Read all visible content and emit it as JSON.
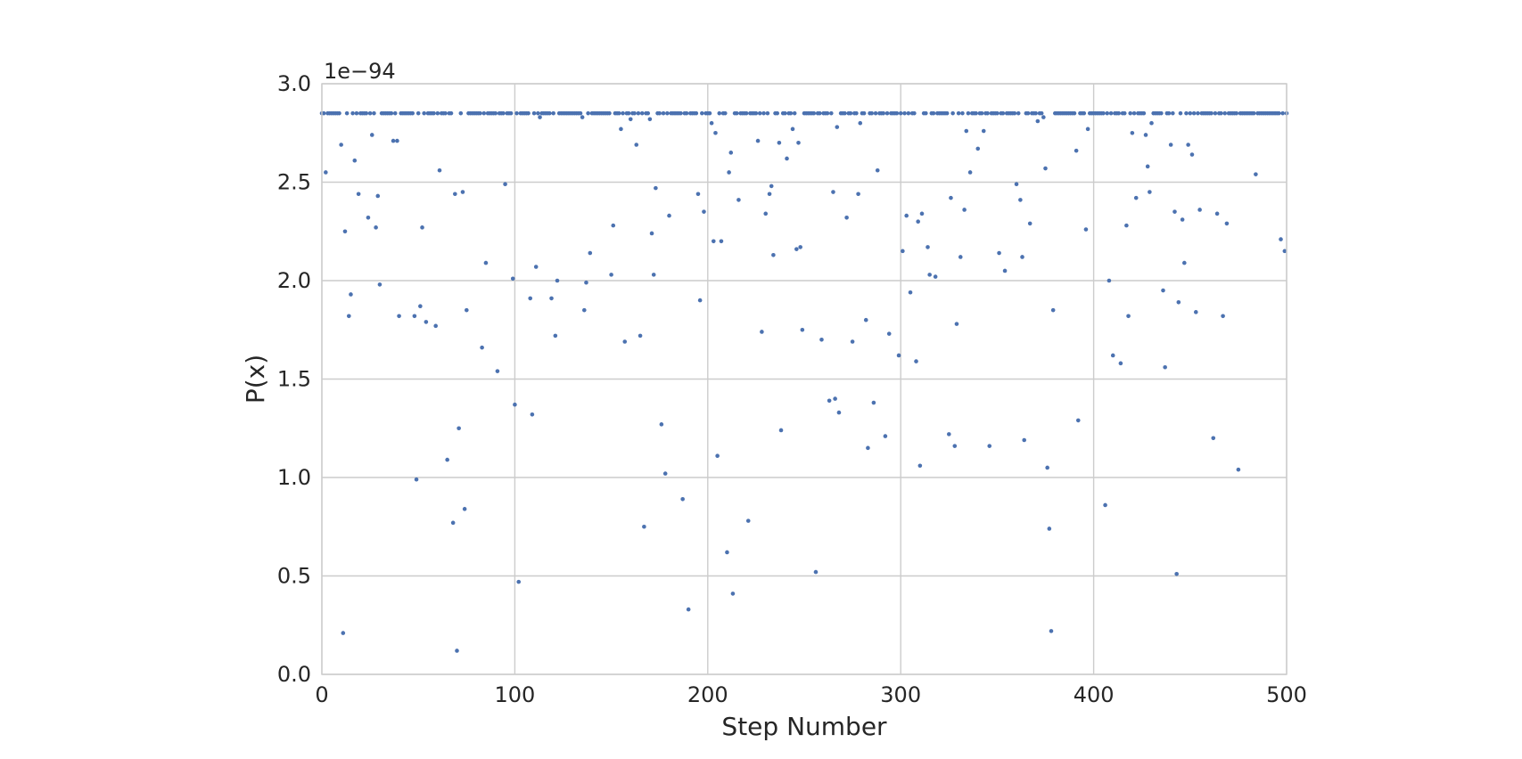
{
  "chart_data": {
    "type": "scatter",
    "title": "",
    "xlabel": "Step Number",
    "ylabel": "P(x)",
    "offset_text": "1e−94",
    "y_scale_exponent": -94,
    "xlim": [
      0,
      500
    ],
    "ylim": [
      0.0,
      3.0
    ],
    "xticks": [
      0,
      100,
      200,
      300,
      400,
      500
    ],
    "xtick_labels": [
      "0",
      "100",
      "200",
      "300",
      "400",
      "500"
    ],
    "yticks": [
      0.0,
      0.5,
      1.0,
      1.5,
      2.0,
      2.5,
      3.0
    ],
    "ytick_labels": [
      "0.0",
      "0.5",
      "1.0",
      "1.5",
      "2.0",
      "2.5",
      "3.0"
    ],
    "grid": true,
    "marker_color": "#4C72B0",
    "background": "#ffffff",
    "grid_color": "#cccccc",
    "note": "y values in units of 1e-94; the dense upper band sits at ~2.85 for most steps not listed in scattered_points",
    "plateau_value": 2.85,
    "scattered_points": [
      [
        2,
        2.55
      ],
      [
        10,
        2.69
      ],
      [
        11,
        0.21
      ],
      [
        12,
        2.25
      ],
      [
        14,
        1.82
      ],
      [
        15,
        1.93
      ],
      [
        17,
        2.61
      ],
      [
        19,
        2.44
      ],
      [
        24,
        2.32
      ],
      [
        26,
        2.74
      ],
      [
        28,
        2.27
      ],
      [
        29,
        2.43
      ],
      [
        30,
        1.98
      ],
      [
        37,
        2.71
      ],
      [
        39,
        2.71
      ],
      [
        40,
        1.82
      ],
      [
        48,
        1.82
      ],
      [
        49,
        0.99
      ],
      [
        51,
        1.87
      ],
      [
        52,
        2.27
      ],
      [
        54,
        1.79
      ],
      [
        59,
        1.77
      ],
      [
        61,
        2.56
      ],
      [
        65,
        1.09
      ],
      [
        68,
        0.77
      ],
      [
        69,
        2.44
      ],
      [
        70,
        0.12
      ],
      [
        71,
        1.25
      ],
      [
        73,
        2.45
      ],
      [
        74,
        0.84
      ],
      [
        75,
        1.85
      ],
      [
        83,
        1.66
      ],
      [
        85,
        2.09
      ],
      [
        91,
        1.54
      ],
      [
        95,
        2.49
      ],
      [
        99,
        2.01
      ],
      [
        100,
        1.37
      ],
      [
        102,
        0.47
      ],
      [
        108,
        1.91
      ],
      [
        109,
        1.32
      ],
      [
        111,
        2.07
      ],
      [
        113,
        2.83
      ],
      [
        119,
        1.91
      ],
      [
        121,
        1.72
      ],
      [
        122,
        2.0
      ],
      [
        135,
        2.83
      ],
      [
        136,
        1.85
      ],
      [
        137,
        1.99
      ],
      [
        139,
        2.14
      ],
      [
        150,
        2.03
      ],
      [
        151,
        2.28
      ],
      [
        155,
        2.77
      ],
      [
        157,
        1.69
      ],
      [
        160,
        2.82
      ],
      [
        163,
        2.69
      ],
      [
        165,
        1.72
      ],
      [
        167,
        0.75
      ],
      [
        170,
        2.82
      ],
      [
        171,
        2.24
      ],
      [
        172,
        2.03
      ],
      [
        173,
        2.47
      ],
      [
        176,
        1.27
      ],
      [
        178,
        1.02
      ],
      [
        180,
        2.33
      ],
      [
        187,
        0.89
      ],
      [
        190,
        0.33
      ],
      [
        195,
        2.44
      ],
      [
        196,
        1.9
      ],
      [
        198,
        2.35
      ],
      [
        202,
        2.8
      ],
      [
        203,
        2.2
      ],
      [
        204,
        2.75
      ],
      [
        205,
        1.11
      ],
      [
        207,
        2.2
      ],
      [
        210,
        0.62
      ],
      [
        211,
        2.55
      ],
      [
        212,
        2.65
      ],
      [
        213,
        0.41
      ],
      [
        216,
        2.41
      ],
      [
        221,
        0.78
      ],
      [
        226,
        2.71
      ],
      [
        228,
        1.74
      ],
      [
        230,
        2.34
      ],
      [
        232,
        2.44
      ],
      [
        233,
        2.48
      ],
      [
        234,
        2.13
      ],
      [
        237,
        2.7
      ],
      [
        238,
        1.24
      ],
      [
        241,
        2.62
      ],
      [
        244,
        2.77
      ],
      [
        246,
        2.16
      ],
      [
        247,
        2.7
      ],
      [
        248,
        2.17
      ],
      [
        249,
        1.75
      ],
      [
        256,
        0.52
      ],
      [
        259,
        1.7
      ],
      [
        263,
        1.39
      ],
      [
        265,
        2.45
      ],
      [
        266,
        1.4
      ],
      [
        267,
        2.78
      ],
      [
        268,
        1.33
      ],
      [
        272,
        2.32
      ],
      [
        275,
        1.69
      ],
      [
        278,
        2.44
      ],
      [
        279,
        2.8
      ],
      [
        282,
        1.8
      ],
      [
        283,
        1.15
      ],
      [
        286,
        1.38
      ],
      [
        288,
        2.56
      ],
      [
        292,
        1.21
      ],
      [
        294,
        1.73
      ],
      [
        299,
        1.62
      ],
      [
        301,
        2.15
      ],
      [
        303,
        2.33
      ],
      [
        305,
        1.94
      ],
      [
        308,
        1.59
      ],
      [
        309,
        2.3
      ],
      [
        310,
        1.06
      ],
      [
        311,
        2.34
      ],
      [
        314,
        2.17
      ],
      [
        315,
        2.03
      ],
      [
        318,
        2.02
      ],
      [
        325,
        1.22
      ],
      [
        326,
        2.42
      ],
      [
        328,
        1.16
      ],
      [
        329,
        1.78
      ],
      [
        331,
        2.12
      ],
      [
        333,
        2.36
      ],
      [
        334,
        2.76
      ],
      [
        336,
        2.55
      ],
      [
        340,
        2.67
      ],
      [
        343,
        2.76
      ],
      [
        346,
        1.16
      ],
      [
        351,
        2.14
      ],
      [
        354,
        2.05
      ],
      [
        360,
        2.49
      ],
      [
        362,
        2.41
      ],
      [
        363,
        2.12
      ],
      [
        364,
        1.19
      ],
      [
        367,
        2.29
      ],
      [
        371,
        2.81
      ],
      [
        374,
        2.83
      ],
      [
        375,
        2.57
      ],
      [
        376,
        1.05
      ],
      [
        377,
        0.74
      ],
      [
        378,
        0.22
      ],
      [
        379,
        1.85
      ],
      [
        391,
        2.66
      ],
      [
        392,
        1.29
      ],
      [
        396,
        2.26
      ],
      [
        397,
        2.77
      ],
      [
        406,
        0.86
      ],
      [
        408,
        2.0
      ],
      [
        410,
        1.62
      ],
      [
        414,
        1.58
      ],
      [
        417,
        2.28
      ],
      [
        418,
        1.82
      ],
      [
        420,
        2.75
      ],
      [
        422,
        2.42
      ],
      [
        427,
        2.74
      ],
      [
        428,
        2.58
      ],
      [
        429,
        2.45
      ],
      [
        430,
        2.8
      ],
      [
        436,
        1.95
      ],
      [
        437,
        1.56
      ],
      [
        440,
        2.69
      ],
      [
        442,
        2.35
      ],
      [
        443,
        0.51
      ],
      [
        444,
        1.89
      ],
      [
        446,
        2.31
      ],
      [
        447,
        2.09
      ],
      [
        449,
        2.69
      ],
      [
        451,
        2.64
      ],
      [
        453,
        1.84
      ],
      [
        455,
        2.36
      ],
      [
        462,
        1.2
      ],
      [
        464,
        2.34
      ],
      [
        467,
        1.82
      ],
      [
        469,
        2.29
      ],
      [
        475,
        1.04
      ],
      [
        484,
        2.54
      ],
      [
        497,
        2.21
      ],
      [
        499,
        2.15
      ]
    ]
  }
}
